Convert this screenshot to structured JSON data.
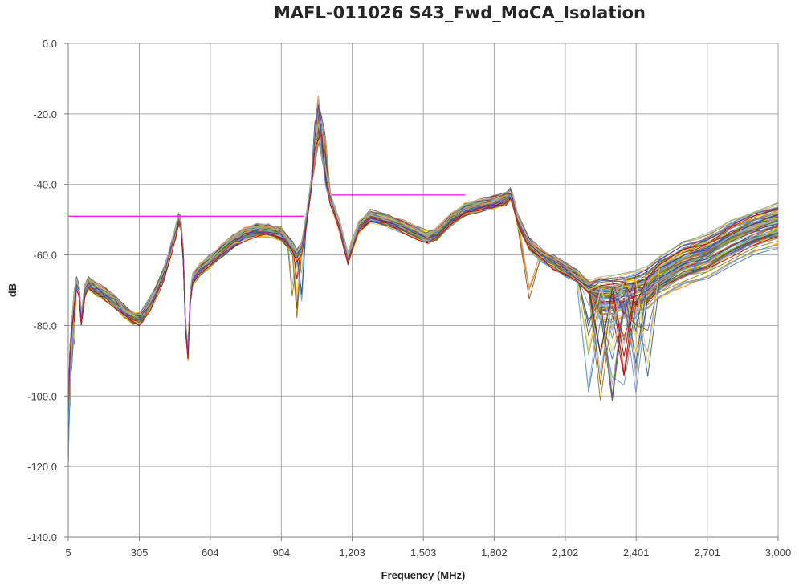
{
  "chart_data": {
    "type": "line",
    "title": "MAFL-011026 S43_Fwd_MoCA_Isolation",
    "xlabel": "Frequency (MHz)",
    "ylabel": "dB",
    "x_tick_labels": [
      "5",
      "305",
      "604",
      "904",
      "1,203",
      "1,503",
      "1,802",
      "2,102",
      "2,401",
      "2,701",
      "3,000"
    ],
    "x_ticks": [
      5,
      305,
      604,
      904,
      1203,
      1503,
      1802,
      2102,
      2401,
      2701,
      3000
    ],
    "y_tick_labels": [
      "0.0",
      "-20.0",
      "-40.0",
      "-60.0",
      "-80.0",
      "-100.0",
      "-120.0",
      "-140.0"
    ],
    "y_ticks": [
      0,
      -20,
      -40,
      -60,
      -80,
      -100,
      -120,
      -140
    ],
    "xlim": [
      5,
      3000
    ],
    "ylim": [
      -140,
      0
    ],
    "grid": true,
    "legend": "none",
    "limit_lines": [
      {
        "x": [
          5,
          1000
        ],
        "y": [
          -49,
          -49
        ],
        "color": "#ff00ff"
      },
      {
        "x": [
          1120,
          1680
        ],
        "y": [
          -43,
          -43
        ],
        "color": "#ff00ff"
      }
    ],
    "typical_trace": {
      "x": [
        5,
        12,
        20,
        30,
        40,
        50,
        60,
        75,
        90,
        110,
        130,
        160,
        200,
        240,
        280,
        305,
        320,
        350,
        380,
        410,
        440,
        460,
        470,
        480,
        490,
        500,
        510,
        520,
        530,
        560,
        600,
        650,
        700,
        750,
        800,
        850,
        900,
        930,
        950,
        970,
        990,
        1010,
        1030,
        1045,
        1060,
        1075,
        1090,
        1110,
        1130,
        1150,
        1170,
        1185,
        1200,
        1230,
        1280,
        1350,
        1420,
        1480,
        1520,
        1560,
        1620,
        1680,
        1740,
        1800,
        1850,
        1870,
        1880,
        1900,
        1950,
        2000,
        2050,
        2100,
        2150,
        2200,
        2250,
        2300,
        2350,
        2400,
        2450,
        2500,
        2600,
        2700,
        2800,
        2900,
        3000
      ],
      "y": [
        -105,
        -88,
        -80,
        -72,
        -68,
        -70,
        -78,
        -70,
        -68,
        -69,
        -70,
        -71,
        -73,
        -76,
        -78,
        -78,
        -77,
        -74,
        -70,
        -65,
        -58,
        -53,
        -50,
        -51,
        -60,
        -80,
        -88,
        -72,
        -67,
        -64,
        -62,
        -59,
        -56,
        -54,
        -53,
        -53,
        -54,
        -56,
        -58,
        -60,
        -58,
        -50,
        -40,
        -30,
        -23,
        -28,
        -34,
        -44,
        -48,
        -52,
        -57,
        -61,
        -58,
        -52,
        -49,
        -50,
        -52,
        -54,
        -55,
        -54,
        -50,
        -47,
        -46,
        -45,
        -44,
        -43,
        -44,
        -50,
        -57,
        -60,
        -62,
        -64,
        -66,
        -69,
        -72,
        -72,
        -71,
        -70,
        -69,
        -66,
        -62,
        -60,
        -56,
        -53,
        -51
      ]
    },
    "series_count_note": "approx. 100 overlapping traces"
  }
}
